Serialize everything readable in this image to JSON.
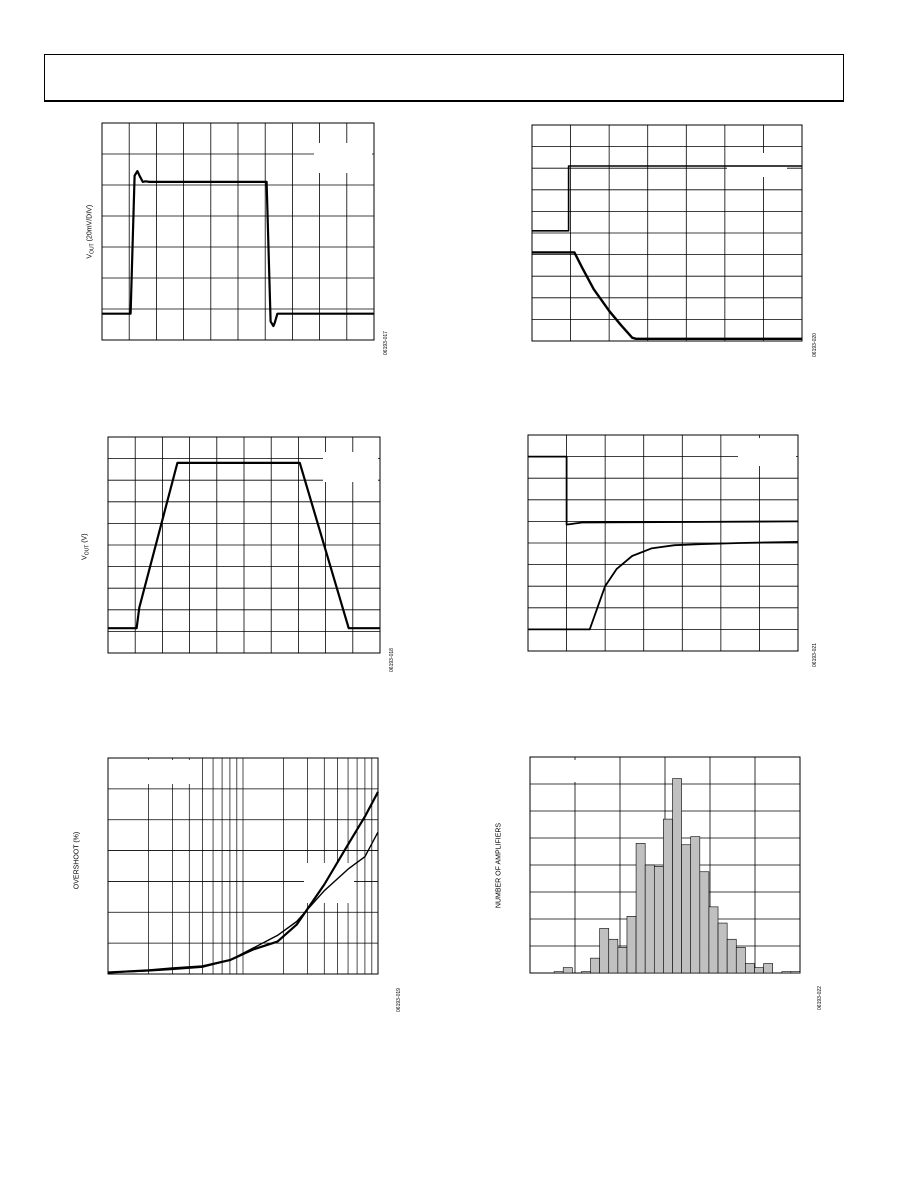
{
  "header": {},
  "colors": {
    "trace": "#000000",
    "grid": "#000000",
    "bar_fill": "#c0c0c0",
    "background": "#ffffff"
  },
  "figures": {
    "fig1": {
      "ylabel_main": "V",
      "ylabel_sub": "OUT",
      "ylabel_rest": " (20mV/DIV)",
      "code": "06193-017"
    },
    "fig2": {
      "code": "06193-020"
    },
    "fig3": {
      "ylabel_main": "V",
      "ylabel_sub": "OUT",
      "ylabel_rest": " (V)",
      "code": "06193-018"
    },
    "fig4": {
      "code": "06193-021"
    },
    "fig5": {
      "ylabel_main": "OVERSHOOT (%)",
      "code": "06193-019"
    },
    "fig6": {
      "ylabel_main": "NUMBER OF AMPLIFIERS",
      "code": "06193-022"
    }
  },
  "chart_data": [
    {
      "id": "fig1",
      "type": "line",
      "title": "",
      "xlabel": "",
      "ylabel": "VOUT (20mV/DIV)",
      "grid": true,
      "xlim": [
        0,
        10
      ],
      "ylim": [
        0,
        7
      ],
      "series": [
        {
          "x": [
            0,
            1.05,
            1.2,
            1.3,
            1.38,
            1.5,
            1.6,
            1.75,
            2,
            6.05,
            6.2,
            6.3,
            6.35,
            6.45,
            6.6,
            6.8,
            7,
            10
          ],
          "y": [
            0.85,
            0.85,
            5.3,
            5.45,
            5.3,
            5.1,
            5.12,
            5.1,
            5.1,
            5.1,
            0.6,
            0.45,
            0.55,
            0.85,
            0.85,
            0.85,
            0.85,
            0.85
          ]
        }
      ]
    },
    {
      "id": "fig2",
      "type": "line",
      "title": "",
      "xlabel": "",
      "ylabel": "",
      "grid": true,
      "xlim": [
        0,
        7
      ],
      "ylim": [
        0,
        10
      ],
      "series": [
        {
          "x": [
            0,
            0.95,
            0.95,
            7
          ],
          "y": [
            5.1,
            5.1,
            8.1,
            8.1
          ]
        },
        {
          "x": [
            0,
            1.1,
            1.3,
            1.6,
            2,
            2.3,
            2.6,
            2.7,
            3.0,
            7
          ],
          "y": [
            4.1,
            4.1,
            3.4,
            2.4,
            1.4,
            0.75,
            0.15,
            0.1,
            0.1,
            0.1
          ]
        }
      ]
    },
    {
      "id": "fig3",
      "type": "line",
      "title": "",
      "xlabel": "",
      "ylabel": "VOUT (V)",
      "grid": true,
      "xlim": [
        0,
        10
      ],
      "ylim": [
        0,
        10
      ],
      "series": [
        {
          "x": [
            0,
            1.05,
            1.15,
            2.55,
            7.05,
            8.85,
            8.95,
            10
          ],
          "y": [
            1.15,
            1.15,
            2.1,
            8.8,
            8.8,
            1.15,
            1.15,
            1.15
          ]
        }
      ]
    },
    {
      "id": "fig4",
      "type": "line",
      "title": "",
      "xlabel": "",
      "ylabel": "",
      "grid": true,
      "xlim": [
        0,
        7
      ],
      "ylim": [
        0,
        10
      ],
      "series": [
        {
          "x": [
            0,
            1.0,
            1.0,
            1.4,
            7
          ],
          "y": [
            9.0,
            9.0,
            5.85,
            5.95,
            6.0
          ]
        },
        {
          "x": [
            0,
            1.6,
            1.8,
            2.0,
            2.3,
            2.7,
            3.2,
            3.8,
            4.5,
            5.5,
            7
          ],
          "y": [
            1.0,
            1.0,
            2.0,
            3.0,
            3.8,
            4.4,
            4.75,
            4.9,
            4.95,
            5.0,
            5.05
          ]
        }
      ]
    },
    {
      "id": "fig5",
      "type": "line",
      "title": "",
      "xlabel": "",
      "ylabel": "OVERSHOOT (%)",
      "grid": true,
      "xscale": "log",
      "xlim": [
        0.001,
        0.1
      ],
      "ylim": [
        0,
        7
      ],
      "series": [
        {
          "x": [
            0.001,
            0.002,
            0.003,
            0.005,
            0.008,
            0.012,
            0.018,
            0.025,
            0.04,
            0.06,
            0.08,
            0.1
          ],
          "y": [
            0.05,
            0.12,
            0.18,
            0.25,
            0.45,
            0.8,
            1.05,
            1.6,
            2.9,
            4.2,
            5.1,
            5.9
          ]
        },
        {
          "x": [
            0.001,
            0.002,
            0.003,
            0.005,
            0.008,
            0.012,
            0.018,
            0.025,
            0.04,
            0.06,
            0.08,
            0.1
          ],
          "y": [
            0.05,
            0.1,
            0.15,
            0.22,
            0.45,
            0.85,
            1.25,
            1.7,
            2.7,
            3.4,
            3.8,
            4.6
          ]
        }
      ]
    },
    {
      "id": "fig6",
      "type": "bar",
      "title": "",
      "xlabel": "",
      "ylabel": "NUMBER OF AMPLIFIERS",
      "grid": true,
      "ylim": [
        0,
        8
      ],
      "values": [
        0,
        0.05,
        0.2,
        0,
        0.05,
        0.55,
        1.65,
        1.25,
        0.95,
        2.1,
        4.8,
        4.0,
        3.95,
        5.7,
        7.2,
        4.75,
        5.05,
        3.75,
        2.45,
        1.85,
        1.25,
        0.95,
        0.35,
        0.2,
        0.35,
        0,
        0.05,
        0.05
      ]
    }
  ]
}
